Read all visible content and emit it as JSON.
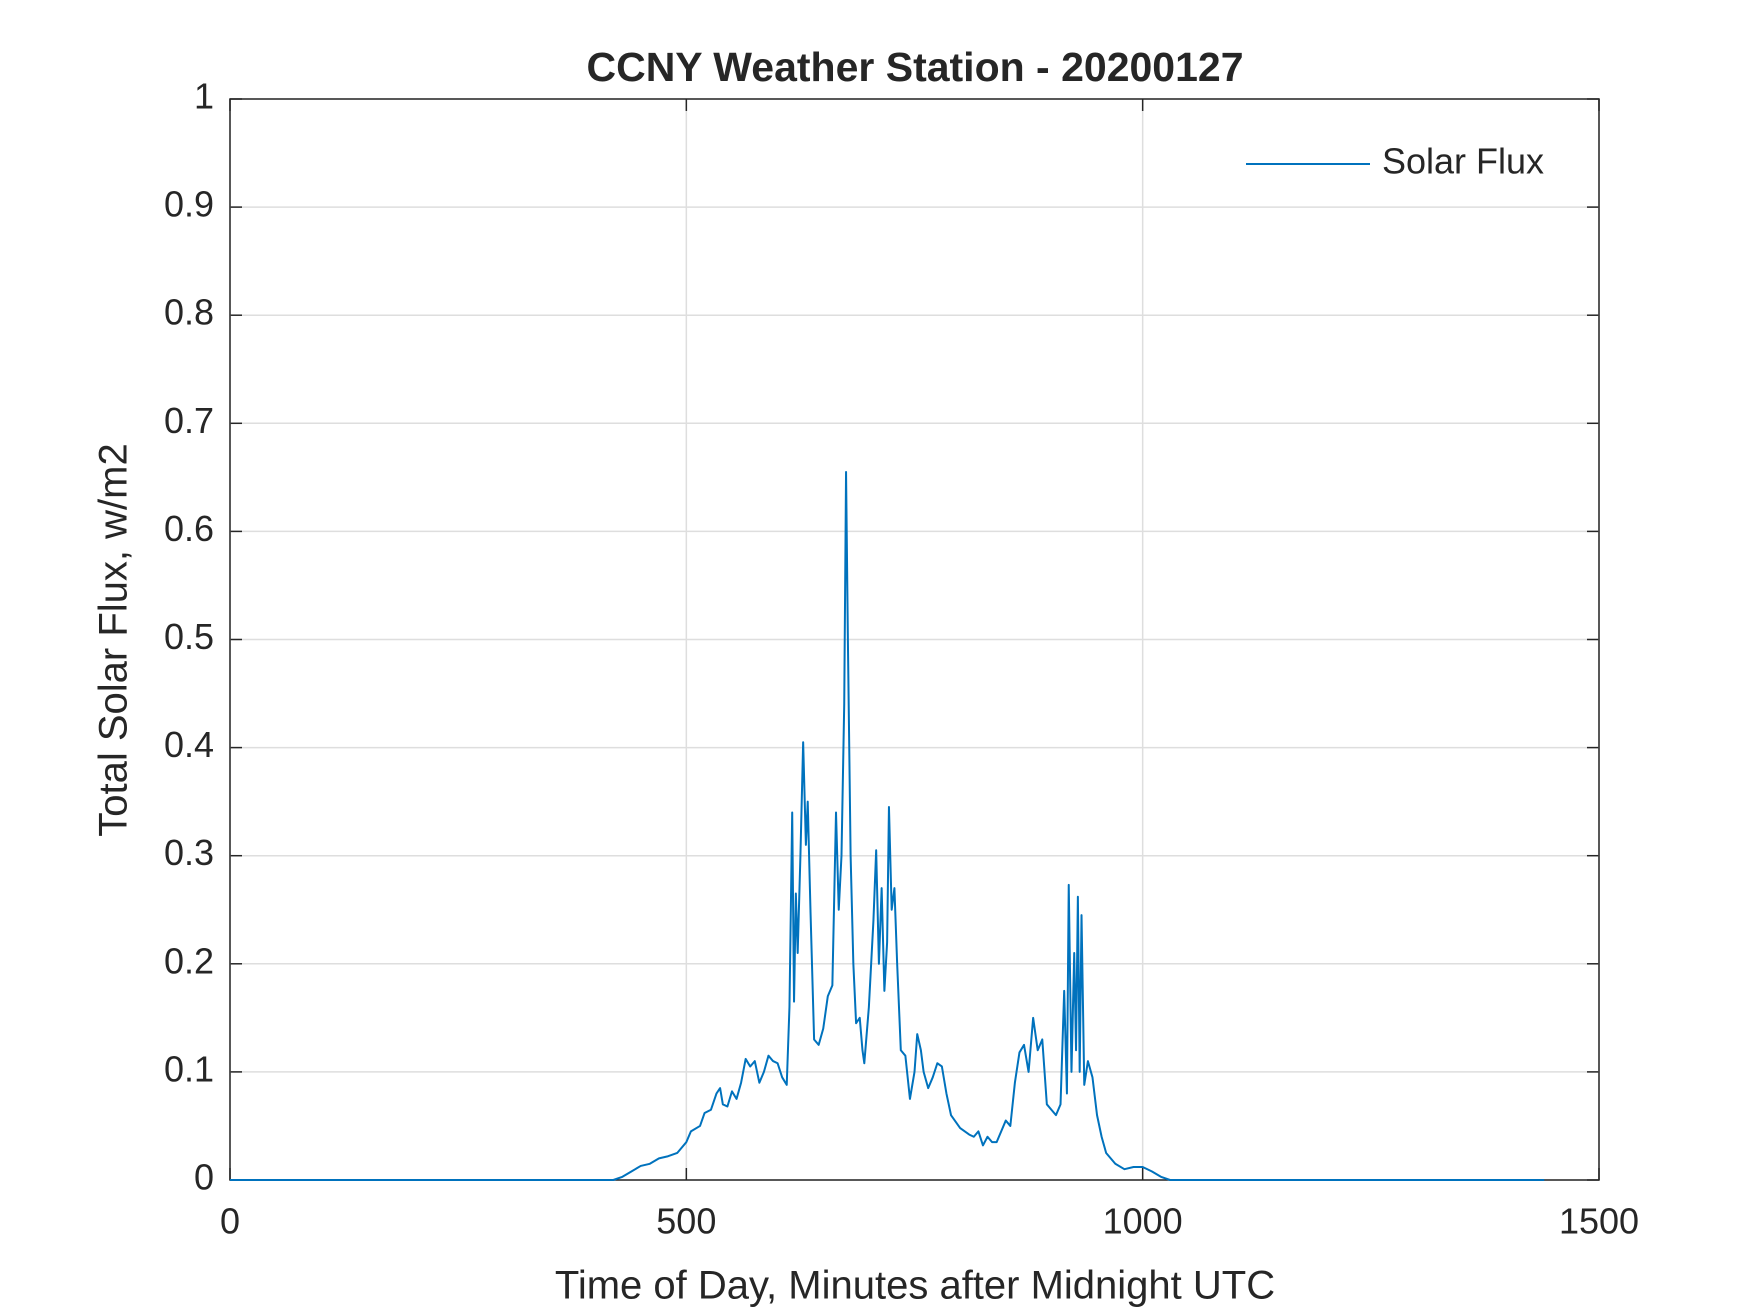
{
  "chart_data": {
    "type": "line",
    "title": "CCNY Weather Station - 20200127",
    "xlabel": "Time of Day, Minutes after Midnight UTC",
    "ylabel": "Total Solar Flux, w/m2",
    "x": [
      0,
      420,
      430,
      440,
      450,
      460,
      470,
      480,
      490,
      500,
      505,
      515,
      520,
      527,
      533,
      537,
      540,
      545,
      550,
      555,
      560,
      565,
      570,
      575,
      580,
      585,
      590,
      595,
      600,
      605,
      610,
      613,
      616,
      618,
      620,
      622,
      625,
      628,
      631,
      633,
      636,
      640,
      645,
      650,
      655,
      660,
      664,
      667,
      670,
      673,
      675,
      677,
      680,
      683,
      686,
      690,
      693,
      695,
      700,
      705,
      708,
      711,
      714,
      717,
      720,
      722,
      725,
      728,
      731,
      735,
      740,
      745,
      750,
      753,
      757,
      760,
      765,
      770,
      775,
      780,
      785,
      790,
      800,
      810,
      815,
      820,
      825,
      830,
      835,
      840,
      845,
      850,
      855,
      860,
      865,
      870,
      875,
      880,
      885,
      890,
      895,
      900,
      905,
      910,
      914,
      917,
      919,
      922,
      925,
      927,
      929,
      931,
      933,
      936,
      940,
      945,
      950,
      955,
      960,
      970,
      980,
      990,
      1000,
      1010,
      1020,
      1030,
      1440
    ],
    "series": [
      {
        "name": "Solar Flux",
        "color": "#0072bd",
        "values": [
          0,
          0,
          0.003,
          0.008,
          0.013,
          0.015,
          0.02,
          0.022,
          0.025,
          0.035,
          0.045,
          0.05,
          0.062,
          0.065,
          0.08,
          0.085,
          0.07,
          0.068,
          0.082,
          0.075,
          0.09,
          0.112,
          0.105,
          0.11,
          0.09,
          0.1,
          0.115,
          0.11,
          0.108,
          0.095,
          0.088,
          0.16,
          0.34,
          0.165,
          0.265,
          0.21,
          0.3,
          0.405,
          0.31,
          0.35,
          0.25,
          0.13,
          0.125,
          0.14,
          0.17,
          0.18,
          0.34,
          0.25,
          0.3,
          0.44,
          0.655,
          0.5,
          0.3,
          0.2,
          0.145,
          0.15,
          0.12,
          0.108,
          0.16,
          0.24,
          0.305,
          0.2,
          0.27,
          0.175,
          0.22,
          0.345,
          0.25,
          0.27,
          0.2,
          0.12,
          0.115,
          0.075,
          0.1,
          0.135,
          0.12,
          0.1,
          0.085,
          0.095,
          0.108,
          0.105,
          0.08,
          0.06,
          0.048,
          0.042,
          0.04,
          0.045,
          0.032,
          0.04,
          0.035,
          0.035,
          0.045,
          0.055,
          0.05,
          0.09,
          0.118,
          0.125,
          0.1,
          0.15,
          0.12,
          0.13,
          0.07,
          0.065,
          0.06,
          0.07,
          0.175,
          0.08,
          0.273,
          0.1,
          0.21,
          0.12,
          0.262,
          0.1,
          0.245,
          0.088,
          0.11,
          0.095,
          0.06,
          0.04,
          0.025,
          0.015,
          0.01,
          0.012,
          0.012,
          0.008,
          0.003,
          0,
          0
        ]
      }
    ],
    "xlim": [
      0,
      1500
    ],
    "xticks": [
      0,
      500,
      1000,
      1500
    ],
    "ylim": [
      0,
      1
    ],
    "yticks": [
      0,
      0.1,
      0.2,
      0.3,
      0.4,
      0.5,
      0.6,
      0.7,
      0.8,
      0.9,
      1
    ],
    "grid": true,
    "legend": "top-right"
  }
}
